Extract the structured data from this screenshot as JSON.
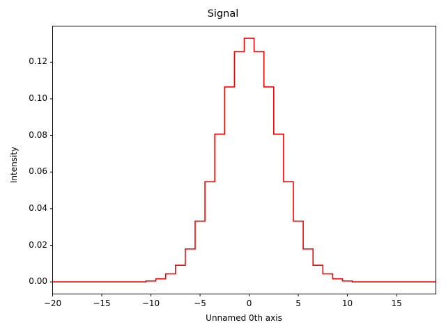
{
  "chart_data": {
    "type": "line",
    "drawstyle": "steps-mid",
    "title": "Signal",
    "xlabel": "Unnamed 0th axis",
    "ylabel": "Intensity",
    "xlim": [
      -20,
      19
    ],
    "ylim": [
      -0.0066,
      0.1397
    ],
    "grid": false,
    "legend": null,
    "line_color": "#ff0000",
    "xticks": [
      -20,
      -15,
      -10,
      -5,
      0,
      5,
      10,
      15
    ],
    "xtick_labels": [
      "−20",
      "−15",
      "−10",
      "−5",
      "0",
      "5",
      "10",
      "15"
    ],
    "yticks": [
      0.0,
      0.02,
      0.04,
      0.06,
      0.08,
      0.1,
      0.12
    ],
    "ytick_labels": [
      "0.00",
      "0.02",
      "0.04",
      "0.06",
      "0.08",
      "0.10",
      "0.12"
    ],
    "series": [
      {
        "name": "Signal",
        "x": [
          -20,
          -19,
          -18,
          -17,
          -16,
          -15,
          -14,
          -13,
          -12,
          -11,
          -10,
          -9,
          -8,
          -7,
          -6,
          -5,
          -4,
          -3,
          -2,
          -1,
          0,
          1,
          2,
          3,
          4,
          5,
          6,
          7,
          8,
          9,
          10,
          11,
          12,
          13,
          14,
          15,
          16,
          17,
          18,
          19
        ],
        "values": [
          0.0,
          0.0,
          0.0,
          0.0,
          0.0,
          0.0,
          0.0,
          0.0,
          0.0,
          0.0,
          0.0005,
          0.0017,
          0.0044,
          0.0091,
          0.018,
          0.0332,
          0.0547,
          0.0807,
          0.1065,
          0.1258,
          0.133,
          0.1258,
          0.1065,
          0.0807,
          0.0547,
          0.0332,
          0.018,
          0.0091,
          0.0044,
          0.0017,
          0.0005,
          0.0,
          0.0,
          0.0,
          0.0,
          0.0,
          0.0,
          0.0,
          0.0,
          0.0
        ]
      }
    ]
  },
  "page": {
    "title": "Signal",
    "xlabel": "Unnamed 0th axis",
    "ylabel": "Intensity"
  }
}
